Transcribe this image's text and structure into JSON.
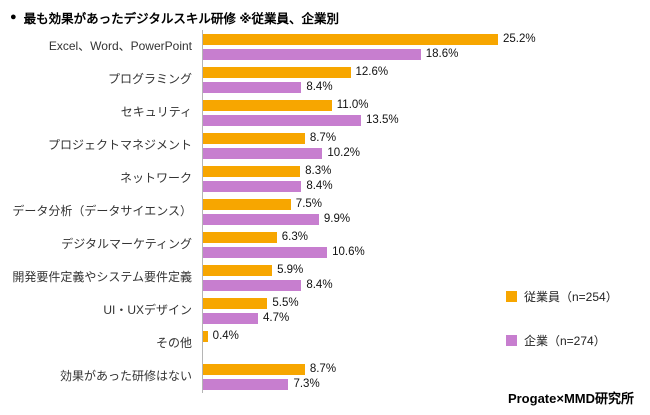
{
  "title_bullet": "●",
  "title": "最も効果があったデジタルスキル研修 ※従業員、企業別",
  "footer": "Progate×MMD研究所",
  "legend": [
    {
      "label": "従業員（n=254）",
      "color": "#F7A600"
    },
    {
      "label": "企業（n=274）",
      "color": "#C77ECF"
    }
  ],
  "chart_data": {
    "type": "bar",
    "orientation": "horizontal",
    "title": "最も効果があったデジタルスキル研修 ※従業員、企業別",
    "value_suffix": "%",
    "xlim": [
      0,
      27
    ],
    "grid": false,
    "legend_position": "right",
    "categories": [
      "Excel、Word、PowerPoint",
      "プログラミング",
      "セキュリティ",
      "プロジェクトマネジメント",
      "ネットワーク",
      "データ分析（データサイエンス）",
      "デジタルマーケティング",
      "開発要件定義やシステム要件定義",
      "UI・UXデザイン",
      "その他",
      "効果があった研修はない"
    ],
    "series": [
      {
        "name": "従業員（n=254）",
        "color": "#F7A600",
        "values": [
          25.2,
          12.6,
          11.0,
          8.7,
          8.3,
          7.5,
          6.3,
          5.9,
          5.5,
          0.4,
          8.7
        ]
      },
      {
        "name": "企業（n=274）",
        "color": "#C77ECF",
        "values": [
          18.6,
          8.4,
          13.5,
          10.2,
          8.4,
          9.9,
          10.6,
          8.4,
          4.7,
          null,
          7.3
        ]
      }
    ]
  }
}
